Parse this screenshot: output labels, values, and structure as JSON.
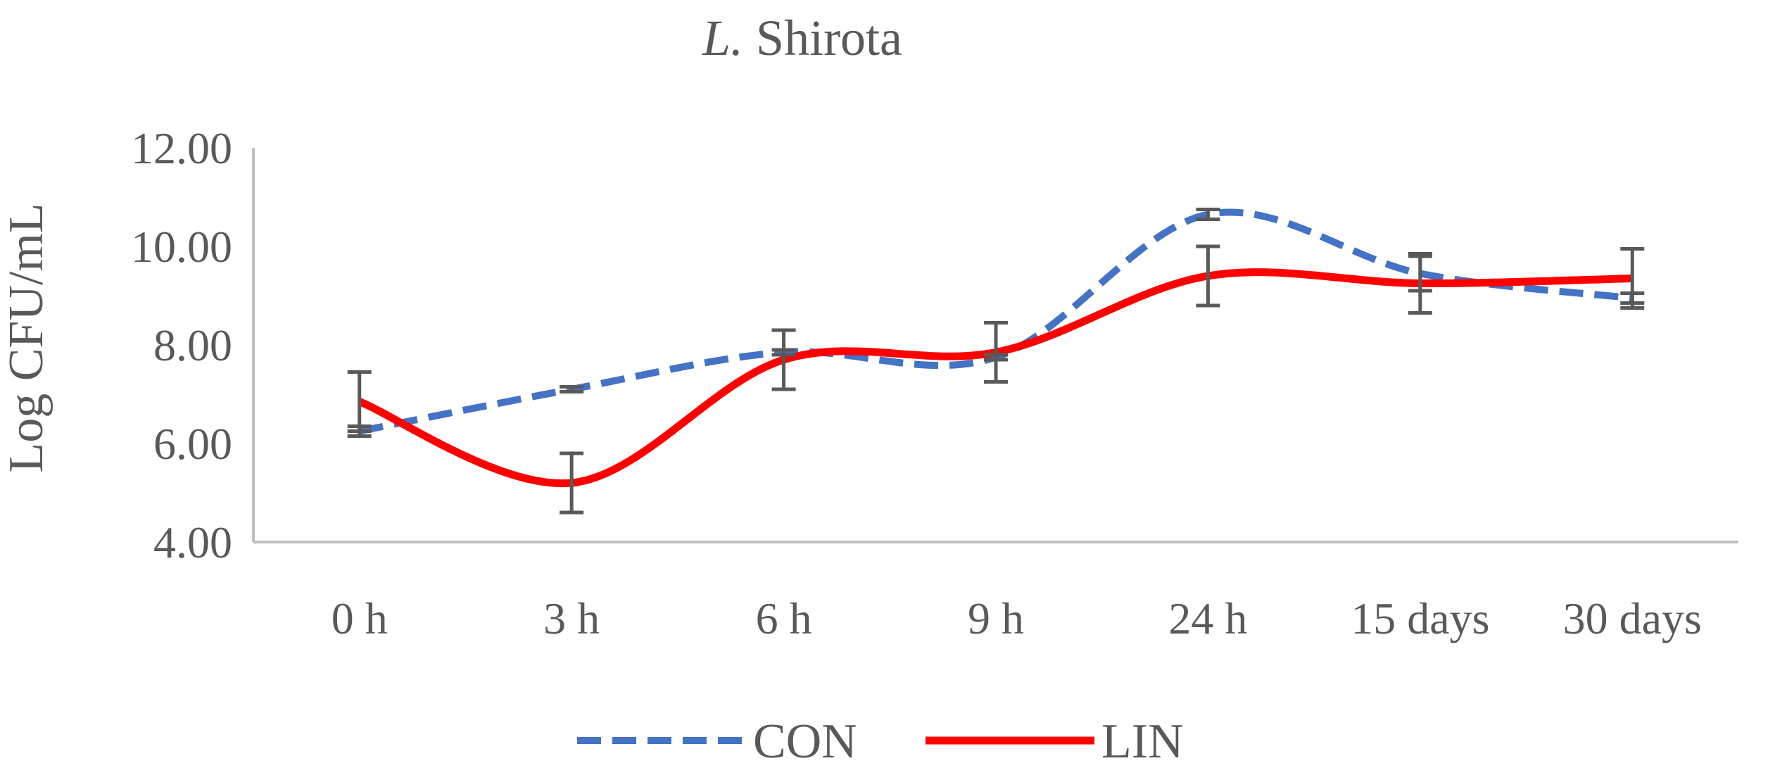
{
  "chart_data": {
    "type": "line",
    "title_italic": "L.",
    "title_rest": " Shirota",
    "title": "L. Shirota",
    "xlabel": "",
    "ylabel": "Log CFU/mL",
    "ylim": [
      4,
      12
    ],
    "yticks": [
      "4.00",
      "6.00",
      "8.00",
      "10.00",
      "12.00"
    ],
    "categories": [
      "0 h",
      "3 h",
      "6 h",
      "9 h",
      "24 h",
      "15 days",
      "30 days"
    ],
    "grid": false,
    "legend_position": "bottom",
    "series": [
      {
        "name": "CON",
        "color": "#4472C4",
        "style": "dashed",
        "values": [
          6.25,
          7.1,
          7.85,
          7.75,
          10.65,
          9.45,
          8.95
        ],
        "errors": [
          0.1,
          0.05,
          0.05,
          0.05,
          0.1,
          0.35,
          0.1
        ]
      },
      {
        "name": "LIN",
        "color": "#FF0000",
        "style": "solid",
        "values": [
          6.85,
          5.2,
          7.7,
          7.85,
          9.4,
          9.25,
          9.35
        ],
        "errors": [
          0.6,
          0.6,
          0.6,
          0.6,
          0.6,
          0.6,
          0.6
        ]
      }
    ],
    "errorbar_color": "#595959"
  }
}
